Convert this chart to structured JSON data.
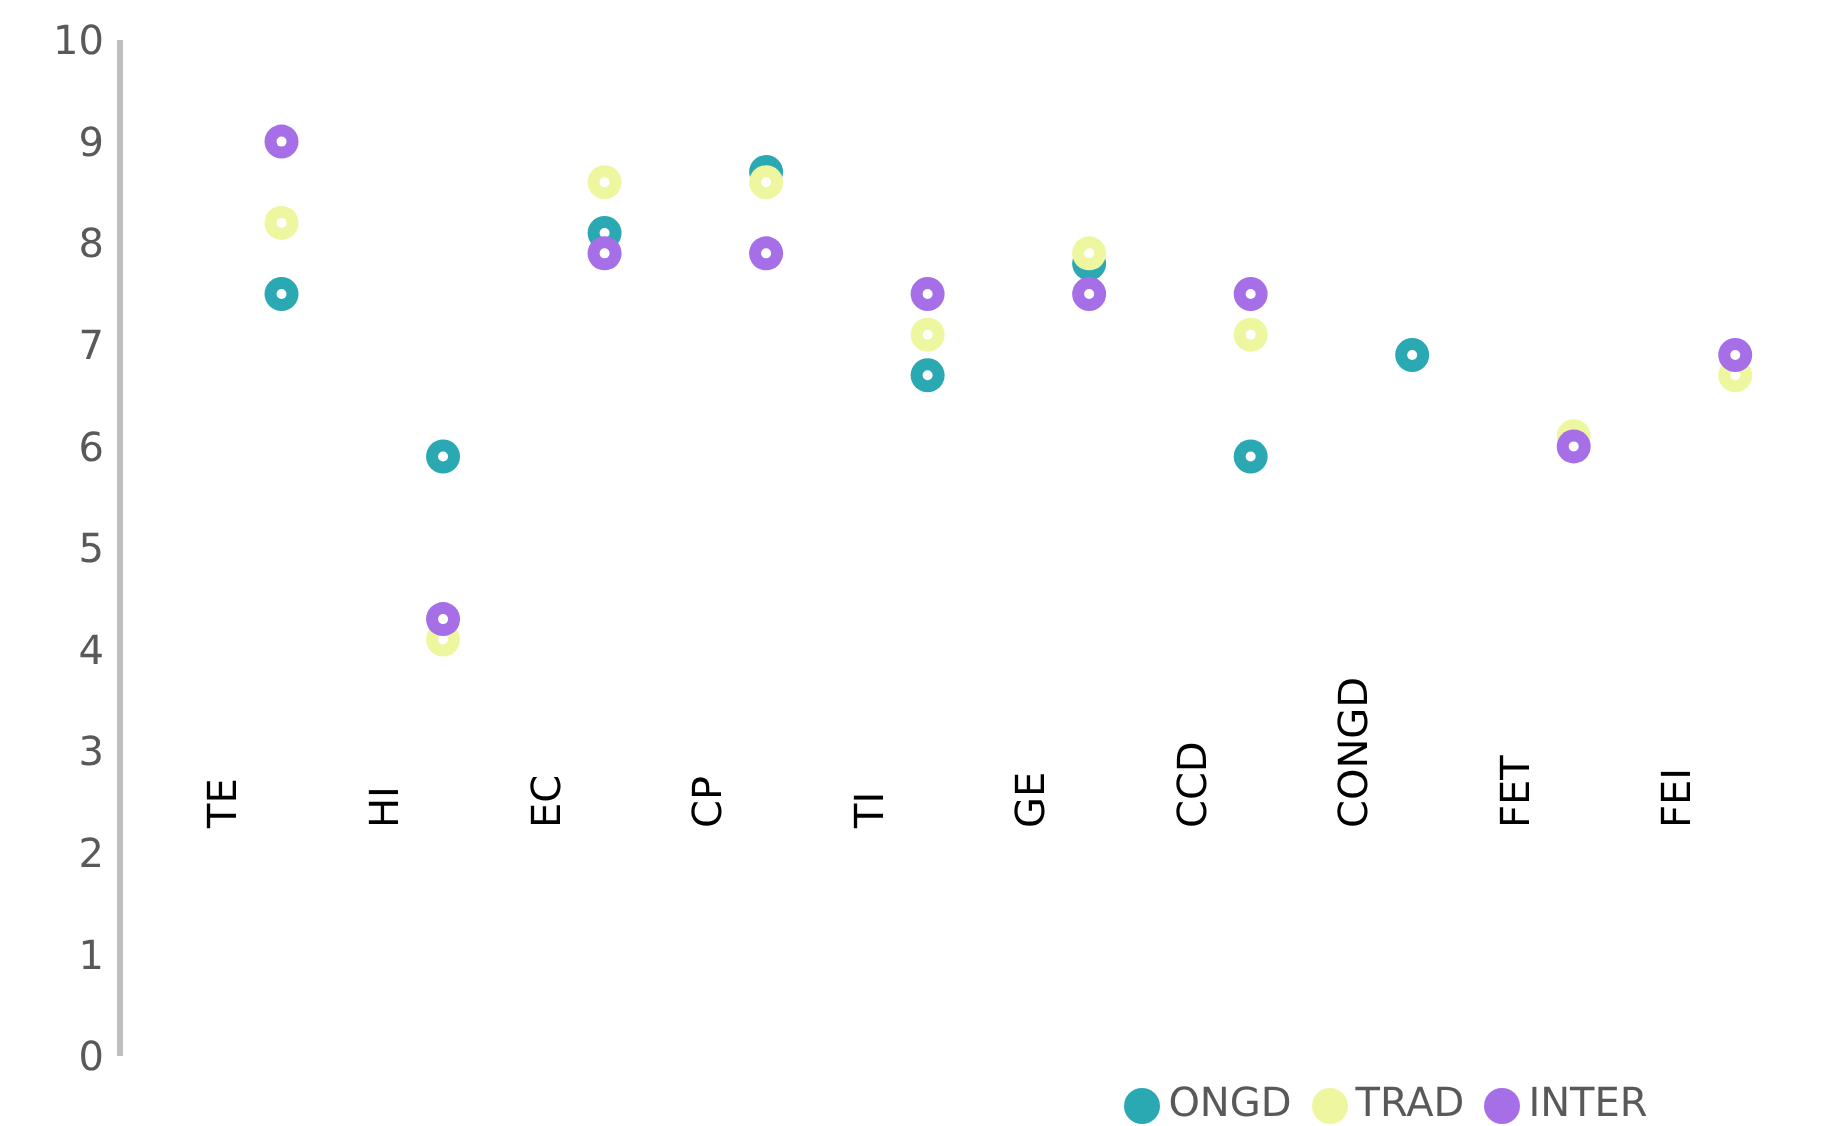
{
  "chart_data": {
    "type": "scatter",
    "categories": [
      "TE",
      "HI",
      "EC",
      "CP",
      "TI",
      "GE",
      "CCD",
      "CONGD",
      "FET",
      "FEI"
    ],
    "series": [
      {
        "name": "ONGD",
        "color": "#2aa9b3",
        "values": [
          7.5,
          5.9,
          8.1,
          8.7,
          6.7,
          7.8,
          5.9,
          6.9,
          null,
          null
        ]
      },
      {
        "name": "TRAD",
        "color": "#eef7a0",
        "values": [
          8.2,
          4.1,
          8.6,
          8.6,
          7.1,
          7.9,
          7.1,
          null,
          6.1,
          6.7
        ]
      },
      {
        "name": "INTER",
        "color": "#a66fe8",
        "values": [
          9.0,
          4.3,
          7.9,
          7.9,
          7.5,
          7.5,
          7.5,
          null,
          6.0,
          6.9
        ]
      }
    ],
    "ylim": [
      0,
      10
    ],
    "yticks": [
      0,
      1,
      2,
      3,
      4,
      5,
      6,
      7,
      8,
      9,
      10
    ],
    "grid": false,
    "legend": "bottom",
    "marker": "circle"
  }
}
